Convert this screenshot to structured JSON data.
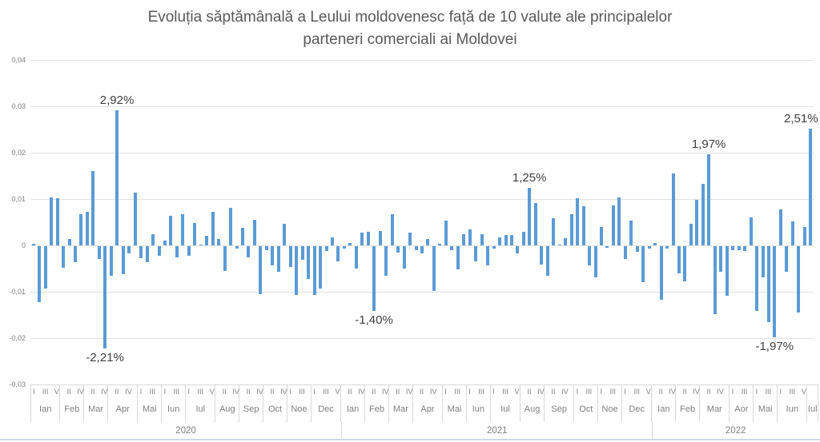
{
  "title": {
    "line1": "Evoluția săptămânală a Leului moldovenesc față de 10 valute ale principalelor",
    "line2": "parteneri comerciali ai Moldovei"
  },
  "colors": {
    "bar": "#5B9BD5",
    "gridline": "#e2e2e2",
    "axis_text": "#7f7f7f",
    "title_text": "#595959",
    "data_label_text": "#404040",
    "bottom_rule": "#ccd9ea"
  },
  "y_axis": {
    "ticks": [
      {
        "label": "0,04",
        "value": 0.04
      },
      {
        "label": "0,03",
        "value": 0.03
      },
      {
        "label": "0,02",
        "value": 0.02
      },
      {
        "label": "0,01",
        "value": 0.01
      },
      {
        "label": "0",
        "value": 0
      },
      {
        "label": "-0,01",
        "value": -0.01
      },
      {
        "label": "-0,02",
        "value": -0.02
      },
      {
        "label": "-0,03",
        "value": -0.03
      }
    ]
  },
  "chart_data": {
    "type": "bar",
    "title": "Evoluția săptămânală a Leului moldovenesc față de 10 valute ale principalelor parteneri comerciali ai Moldovei",
    "ylabel": "",
    "xlabel": "",
    "ylim": [
      -0.03,
      0.04
    ],
    "grid": "horizontal",
    "legend": "none",
    "unit": "weekly change (decimal fraction); labels shown as percent",
    "values": [
      0.0004,
      -0.0121,
      -0.0092,
      0.0103,
      0.0101,
      -0.0047,
      0.0013,
      -0.0035,
      0.0067,
      0.0073,
      0.016,
      -0.0028,
      -0.0221,
      -0.0063,
      0.0292,
      -0.006,
      -0.0015,
      0.0113,
      -0.0025,
      -0.0035,
      0.0025,
      -0.002,
      0.0011,
      0.0063,
      -0.0024,
      0.0067,
      -0.0021,
      0.0048,
      0.0002,
      0.002,
      0.0072,
      0.0013,
      -0.0053,
      0.0081,
      -0.0005,
      0.0038,
      -0.0024,
      0.0055,
      -0.0104,
      -0.0009,
      -0.0042,
      -0.0056,
      0.0046,
      -0.0045,
      -0.0105,
      -0.0029,
      -0.007,
      -0.0106,
      -0.0091,
      -0.0011,
      0.0018,
      -0.0032,
      -0.0006,
      0.0005,
      -0.0048,
      0.0028,
      0.003,
      -0.014,
      0.0031,
      -0.0064,
      0.0068,
      -0.0014,
      -0.0049,
      0.0028,
      -0.0009,
      -0.0015,
      0.0013,
      -0.0097,
      0.0003,
      0.0053,
      -0.0008,
      -0.005,
      0.0024,
      0.0034,
      -0.0033,
      0.0024,
      -0.0041,
      -0.0005,
      0.0017,
      0.0023,
      0.0022,
      -0.0015,
      0.003,
      0.0125,
      0.0092,
      -0.004,
      -0.0063,
      0.0058,
      0.0002,
      0.0016,
      0.0068,
      0.0101,
      0.0084,
      -0.0041,
      -0.0067,
      0.004,
      -0.0003,
      0.0086,
      0.0104,
      -0.0028,
      0.0053,
      -0.0012,
      -0.0078,
      -0.0005,
      0.0005,
      -0.0116,
      -0.0005,
      0.0156,
      -0.0058,
      -0.0076,
      0.0046,
      0.0098,
      0.0132,
      0.0197,
      -0.0146,
      -0.0056,
      -0.0107,
      -0.0008,
      -0.0008,
      -0.001,
      0.0061,
      -0.0139,
      -0.0068,
      -0.0163,
      -0.0197,
      0.0077,
      -0.0055,
      0.0052,
      -0.0143,
      0.004,
      0.0251
    ],
    "labeled_points": [
      {
        "index": 12,
        "label": "-2,21%",
        "position": "below"
      },
      {
        "index": 14,
        "label": "2,92%",
        "position": "above"
      },
      {
        "index": 57,
        "label": "-1,40%",
        "position": "below"
      },
      {
        "index": 83,
        "label": "1,25%",
        "position": "above"
      },
      {
        "index": 113,
        "label": "1,97%",
        "position": "above"
      },
      {
        "index": 124,
        "label": "-1,97%",
        "position": "below"
      },
      {
        "index": 130,
        "label": "2,51%",
        "position": "above"
      }
    ],
    "x_axis": {
      "week_tick_note": "Roman numerals = week of month",
      "years": [
        {
          "year": "2020",
          "months": [
            {
              "name": "Ian",
              "weeks": 5,
              "week_labels": [
                "I",
                "III",
                "V"
              ]
            },
            {
              "name": "Feb",
              "weeks": 4,
              "week_labels": [
                "II",
                "IV"
              ]
            },
            {
              "name": "Mar",
              "weeks": 4,
              "week_labels": [
                "II",
                "IV"
              ]
            },
            {
              "name": "Apr",
              "weeks": 5,
              "week_labels": [
                "II",
                "IV"
              ]
            },
            {
              "name": "Mai",
              "weeks": 4,
              "week_labels": [
                "I",
                "III"
              ]
            },
            {
              "name": "Iun",
              "weeks": 4,
              "week_labels": [
                "I",
                "III"
              ]
            },
            {
              "name": "Iul",
              "weeks": 5,
              "week_labels": [
                "I",
                "III",
                "V"
              ]
            },
            {
              "name": "Aug",
              "weeks": 4,
              "week_labels": [
                "II",
                "IV"
              ]
            },
            {
              "name": "Sep",
              "weeks": 4,
              "week_labels": [
                "II",
                "IV"
              ]
            },
            {
              "name": "Oct",
              "weeks": 4,
              "week_labels": [
                "II",
                "IV"
              ]
            },
            {
              "name": "Noe",
              "weeks": 4,
              "week_labels": [
                "I",
                "III"
              ]
            },
            {
              "name": "Dec",
              "weeks": 5,
              "week_labels": [
                "I",
                "III",
                "V"
              ]
            }
          ]
        },
        {
          "year": "2021",
          "months": [
            {
              "name": "Ian",
              "weeks": 4,
              "week_labels": [
                "II",
                "IV"
              ]
            },
            {
              "name": "Feb",
              "weeks": 4,
              "week_labels": [
                "II",
                "IV"
              ]
            },
            {
              "name": "Mar",
              "weeks": 4,
              "week_labels": [
                "II",
                "IV"
              ]
            },
            {
              "name": "Apr",
              "weeks": 5,
              "week_labels": [
                "II",
                "IV"
              ]
            },
            {
              "name": "Mai",
              "weeks": 4,
              "week_labels": [
                "I",
                "III"
              ]
            },
            {
              "name": "Iun",
              "weeks": 4,
              "week_labels": [
                "I",
                "III"
              ]
            },
            {
              "name": "Iul",
              "weeks": 5,
              "week_labels": [
                "I",
                "III",
                "V"
              ]
            },
            {
              "name": "Aug",
              "weeks": 4,
              "week_labels": [
                "II",
                "IV"
              ]
            },
            {
              "name": "Sep",
              "weeks": 5,
              "week_labels": [
                "II",
                "IV"
              ]
            },
            {
              "name": "Oct",
              "weeks": 4,
              "week_labels": [
                "I",
                "III"
              ]
            },
            {
              "name": "Noe",
              "weeks": 4,
              "week_labels": [
                "I",
                "III"
              ]
            },
            {
              "name": "Dec",
              "weeks": 5,
              "week_labels": [
                "I",
                "III",
                "V"
              ]
            }
          ]
        },
        {
          "year": "2022",
          "months": [
            {
              "name": "Ian",
              "weeks": 4,
              "week_labels": [
                "II",
                "IV"
              ]
            },
            {
              "name": "Feb",
              "weeks": 4,
              "week_labels": [
                "II",
                "IV"
              ]
            },
            {
              "name": "Mar",
              "weeks": 5,
              "week_labels": [
                "II",
                "IV"
              ]
            },
            {
              "name": "Aor",
              "weeks": 4,
              "week_labels": [
                "I",
                "III"
              ]
            },
            {
              "name": "Mai",
              "weeks": 4,
              "week_labels": [
                "I",
                "III"
              ]
            },
            {
              "name": "Iun",
              "weeks": 5,
              "week_labels": [
                "I",
                "III",
                "V"
              ]
            },
            {
              "name": "Iul",
              "weeks": 1,
              "week_labels": []
            }
          ]
        }
      ]
    }
  }
}
